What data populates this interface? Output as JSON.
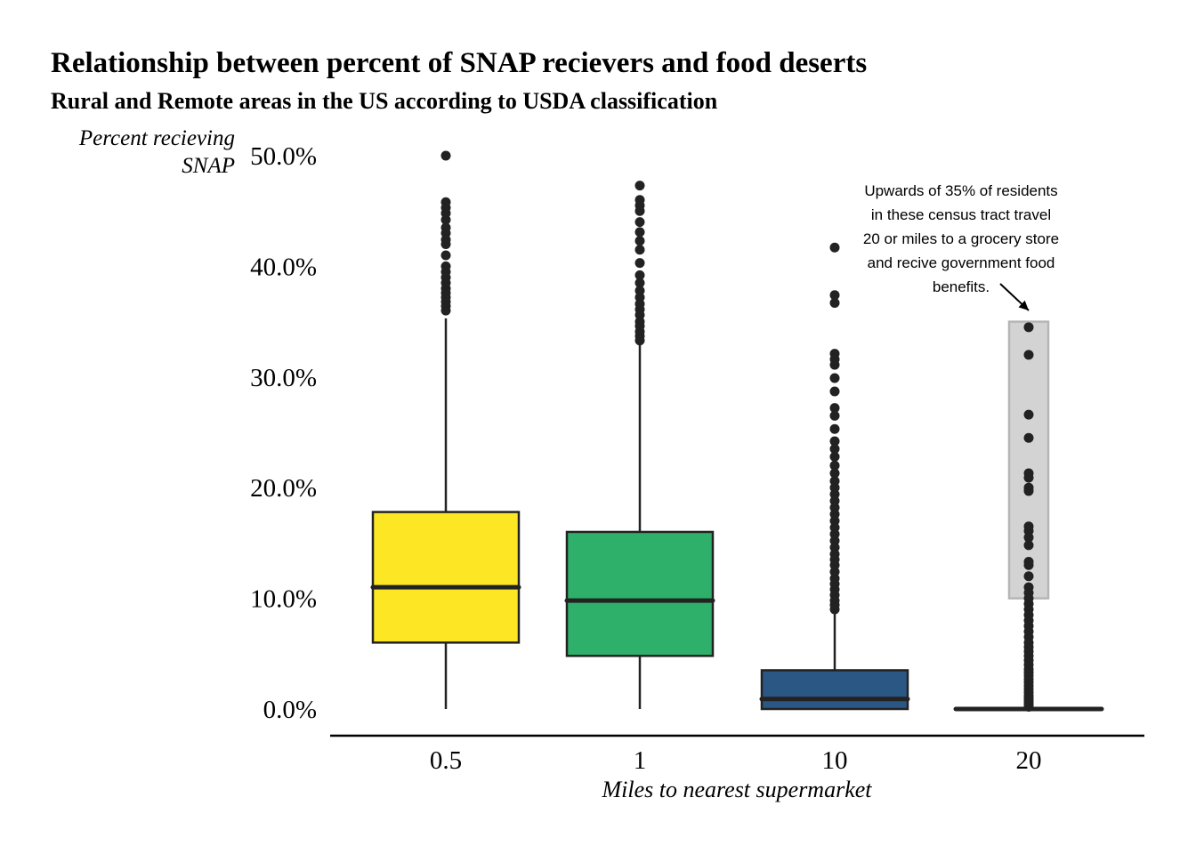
{
  "chart_data": {
    "type": "box",
    "title": "Relationship between percent of SNAP recievers and food deserts",
    "subtitle": "Rural and Remote areas in the US according to USDA classification",
    "ylabel_lines": [
      "Percent recieving",
      "SNAP"
    ],
    "xlabel": "Miles to nearest supermarket",
    "ylim": [
      0,
      50
    ],
    "yticks": [
      {
        "value": 0,
        "label": "0.0%"
      },
      {
        "value": 10,
        "label": "10.0%"
      },
      {
        "value": 20,
        "label": "20.0%"
      },
      {
        "value": 30,
        "label": "30.0%"
      },
      {
        "value": 40,
        "label": "40.0%"
      },
      {
        "value": 50,
        "label": "50.0%"
      }
    ],
    "grid": false,
    "legend": "none",
    "categories": [
      "0.5",
      "1",
      "10",
      "20"
    ],
    "boxes": [
      {
        "category": "0.5",
        "color": "#FDE725",
        "min": 0,
        "q1": 6.0,
        "median": 11.0,
        "q3": 17.8,
        "max": 35.3,
        "outliers": [
          36.0,
          36.4,
          36.8,
          37.2,
          37.6,
          38.0,
          38.5,
          39.0,
          39.5,
          40.0,
          41.0,
          42.0,
          42.4,
          43.0,
          43.5,
          44.2,
          44.8,
          45.3,
          45.8,
          50.0
        ]
      },
      {
        "category": "1",
        "color": "#2FB06A",
        "min": 0,
        "q1": 4.8,
        "median": 9.8,
        "q3": 16.0,
        "max": 33.0,
        "outliers": [
          33.3,
          33.7,
          34.1,
          34.6,
          35.0,
          35.6,
          36.1,
          36.6,
          37.2,
          37.8,
          38.5,
          39.2,
          40.3,
          41.5,
          42.3,
          43.1,
          44.0,
          45.0,
          45.5,
          46.0,
          47.3
        ]
      },
      {
        "category": "10",
        "color": "#2A5783",
        "min": 0,
        "q1": 0,
        "median": 0.9,
        "q3": 3.5,
        "max": 8.7,
        "outliers": [
          9.0,
          9.4,
          9.8,
          10.3,
          10.8,
          11.3,
          11.8,
          12.4,
          13.0,
          13.5,
          14.0,
          14.6,
          15.2,
          15.8,
          16.4,
          17.0,
          17.6,
          18.2,
          18.8,
          19.4,
          20.0,
          20.6,
          21.3,
          22.0,
          22.8,
          23.5,
          24.2,
          25.3,
          26.5,
          27.2,
          28.7,
          29.9,
          31.1,
          31.6,
          32.1,
          36.7,
          37.4,
          41.7
        ]
      },
      {
        "category": "20",
        "color": "#FFFFFF",
        "min": 0,
        "q1": 0,
        "median": 0,
        "q3": 0,
        "max": 0,
        "outliers": [
          0.2,
          0.4,
          0.6,
          0.8,
          1.0,
          1.2,
          1.5,
          1.8,
          2.1,
          2.4,
          2.7,
          3.0,
          3.3,
          3.6,
          4.0,
          4.4,
          4.8,
          5.2,
          5.6,
          6.0,
          6.5,
          7.0,
          7.5,
          8.0,
          8.5,
          9.0,
          9.5,
          10.0,
          10.5,
          11.0,
          12.0,
          13.0,
          13.3,
          14.8,
          15.5,
          16.1,
          16.5,
          19.7,
          20.0,
          20.9,
          21.3,
          24.5,
          26.6,
          32.0,
          34.5
        ]
      }
    ],
    "highlight": {
      "category": "20",
      "y_from": 10,
      "y_to": 35,
      "color": "#D3D3D3"
    },
    "annotation": {
      "lines": [
        "Upwards of 35% of residents",
        "in these census tract travel",
        "20 or miles to a grocery store",
        "and recive government food",
        "benefits."
      ]
    }
  }
}
